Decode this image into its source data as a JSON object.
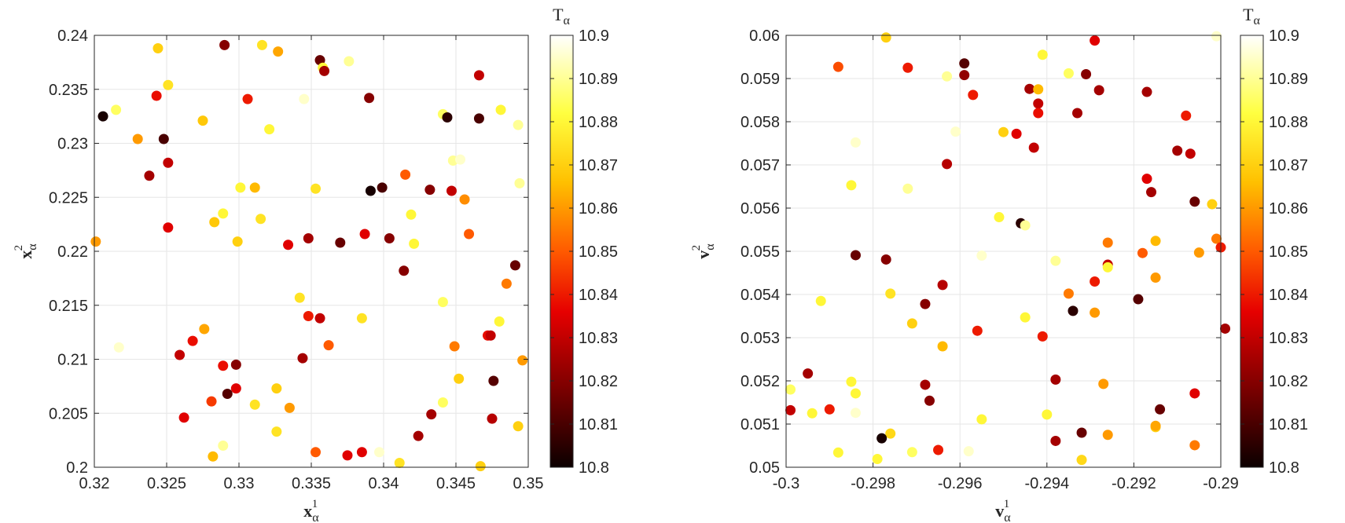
{
  "colors": {
    "colormap_hot": [
      "#0b0000",
      "#7a0000",
      "#e60000",
      "#ff5a00",
      "#ffc000",
      "#ffff40",
      "#ffffff"
    ],
    "axis": "#262626",
    "grid": "#e6e6e6",
    "background": "#ffffff"
  },
  "chart_data": [
    {
      "type": "scatter",
      "title": "",
      "xlabel_base": "x",
      "xlabel_sub": "α",
      "xlabel_sup": "1",
      "ylabel_base": "x",
      "ylabel_sub": "α",
      "ylabel_sup": "2",
      "xlim": [
        0.32,
        0.35
      ],
      "ylim": [
        0.2,
        0.24
      ],
      "xticks": [
        0.32,
        0.325,
        0.33,
        0.335,
        0.34,
        0.345,
        0.35
      ],
      "xtick_labels": [
        "0.32",
        "0.325",
        "0.33",
        "0.335",
        "0.34",
        "0.345",
        "0.35"
      ],
      "yticks": [
        0.2,
        0.205,
        0.21,
        0.215,
        0.22,
        0.225,
        0.23,
        0.235,
        0.24
      ],
      "ytick_labels": [
        "0.2",
        "0.205",
        "0.21",
        "0.215",
        "0.22",
        "0.225",
        "0.23",
        "0.235",
        "0.24"
      ],
      "grid": true,
      "colorbar": {
        "label_base": "T",
        "label_sub": "α",
        "range": [
          10.8,
          10.9
        ],
        "ticks": [
          10.8,
          10.81,
          10.82,
          10.83,
          10.84,
          10.85,
          10.86,
          10.87,
          10.88,
          10.89,
          10.9
        ],
        "tick_labels": [
          "10.8",
          "10.81",
          "10.82",
          "10.83",
          "10.84",
          "10.85",
          "10.86",
          "10.87",
          "10.88",
          "10.89",
          "10.9"
        ]
      },
      "points": [
        [
          0.3206,
          0.2325,
          10.802
        ],
        [
          0.3215,
          0.2331,
          10.885
        ],
        [
          0.323,
          0.2304,
          10.86
        ],
        [
          0.3238,
          0.227,
          10.825
        ],
        [
          0.3243,
          0.2344,
          10.838
        ],
        [
          0.3244,
          0.2388,
          10.87
        ],
        [
          0.3248,
          0.2304,
          10.81
        ],
        [
          0.3251,
          0.2354,
          10.875
        ],
        [
          0.3251,
          0.2282,
          10.83
        ],
        [
          0.3251,
          0.2222,
          10.835
        ],
        [
          0.329,
          0.2391,
          10.82
        ],
        [
          0.3275,
          0.2321,
          10.868
        ],
        [
          0.3306,
          0.2341,
          10.84
        ],
        [
          0.3316,
          0.2391,
          10.875
        ],
        [
          0.3321,
          0.2313,
          10.88
        ],
        [
          0.3327,
          0.2385,
          10.862
        ],
        [
          0.3356,
          0.2377,
          10.815
        ],
        [
          0.3358,
          0.237,
          10.88
        ],
        [
          0.3359,
          0.2367,
          10.825
        ],
        [
          0.3376,
          0.2376,
          10.89
        ],
        [
          0.339,
          0.2342,
          10.82
        ],
        [
          0.3345,
          0.2341,
          10.895
        ],
        [
          0.3466,
          0.2363,
          10.83
        ],
        [
          0.3448,
          0.2284,
          10.89
        ],
        [
          0.3441,
          0.2327,
          10.885
        ],
        [
          0.3444,
          0.2324,
          10.805
        ],
        [
          0.3466,
          0.2323,
          10.81
        ],
        [
          0.3481,
          0.2331,
          10.88
        ],
        [
          0.3493,
          0.2317,
          10.89
        ],
        [
          0.3453,
          0.2285,
          10.895
        ],
        [
          0.3494,
          0.2263,
          10.89
        ],
        [
          0.3415,
          0.2271,
          10.85
        ],
        [
          0.3391,
          0.2256,
          10.802
        ],
        [
          0.3399,
          0.2259,
          10.81
        ],
        [
          0.3432,
          0.2257,
          10.82
        ],
        [
          0.3447,
          0.2256,
          10.83
        ],
        [
          0.3456,
          0.2248,
          10.858
        ],
        [
          0.3459,
          0.2216,
          10.85
        ],
        [
          0.3353,
          0.2258,
          10.875
        ],
        [
          0.3311,
          0.2259,
          10.865
        ],
        [
          0.3301,
          0.2259,
          10.88
        ],
        [
          0.3289,
          0.2235,
          10.88
        ],
        [
          0.3283,
          0.2227,
          10.868
        ],
        [
          0.3315,
          0.223,
          10.875
        ],
        [
          0.3419,
          0.2234,
          10.88
        ],
        [
          0.3201,
          0.2209,
          10.86
        ],
        [
          0.3299,
          0.2209,
          10.87
        ],
        [
          0.3334,
          0.2206,
          10.835
        ],
        [
          0.3348,
          0.2212,
          10.825
        ],
        [
          0.337,
          0.2208,
          10.815
        ],
        [
          0.3387,
          0.2216,
          10.835
        ],
        [
          0.3404,
          0.2212,
          10.82
        ],
        [
          0.3421,
          0.2207,
          10.88
        ],
        [
          0.3414,
          0.2182,
          10.82
        ],
        [
          0.3491,
          0.2187,
          10.815
        ],
        [
          0.3485,
          0.217,
          10.855
        ],
        [
          0.3268,
          0.217,
          10.9
        ],
        [
          0.3342,
          0.2157,
          10.875
        ],
        [
          0.3348,
          0.214,
          10.84
        ],
        [
          0.3356,
          0.2138,
          10.83
        ],
        [
          0.3385,
          0.2138,
          10.875
        ],
        [
          0.3441,
          0.2153,
          10.885
        ],
        [
          0.348,
          0.2135,
          10.88
        ],
        [
          0.3472,
          0.2122,
          10.838
        ],
        [
          0.3474,
          0.2122,
          10.83
        ],
        [
          0.3449,
          0.2112,
          10.855
        ],
        [
          0.3362,
          0.2113,
          10.85
        ],
        [
          0.3344,
          0.2101,
          10.825
        ],
        [
          0.3217,
          0.2111,
          10.895
        ],
        [
          0.3259,
          0.2104,
          10.83
        ],
        [
          0.3268,
          0.2117,
          10.838
        ],
        [
          0.3276,
          0.2128,
          10.862
        ],
        [
          0.3289,
          0.2094,
          10.838
        ],
        [
          0.3298,
          0.2095,
          10.82
        ],
        [
          0.3298,
          0.2073,
          10.835
        ],
        [
          0.3292,
          0.2068,
          10.812
        ],
        [
          0.3281,
          0.2061,
          10.845
        ],
        [
          0.3262,
          0.2046,
          10.835
        ],
        [
          0.3311,
          0.2058,
          10.875
        ],
        [
          0.3326,
          0.2073,
          10.87
        ],
        [
          0.3335,
          0.2055,
          10.86
        ],
        [
          0.3326,
          0.2033,
          10.875
        ],
        [
          0.3289,
          0.202,
          10.89
        ],
        [
          0.3282,
          0.201,
          10.865
        ],
        [
          0.3353,
          0.2014,
          10.85
        ],
        [
          0.3375,
          0.2011,
          10.835
        ],
        [
          0.3385,
          0.2014,
          10.835
        ],
        [
          0.3397,
          0.2014,
          10.895
        ],
        [
          0.3411,
          0.2004,
          10.875
        ],
        [
          0.3424,
          0.2029,
          10.825
        ],
        [
          0.3433,
          0.2049,
          10.825
        ],
        [
          0.3441,
          0.206,
          10.885
        ],
        [
          0.3452,
          0.2082,
          10.87
        ],
        [
          0.3476,
          0.208,
          10.812
        ],
        [
          0.3475,
          0.2045,
          10.828
        ],
        [
          0.3493,
          0.2038,
          10.87
        ],
        [
          0.3496,
          0.2099,
          10.86
        ],
        [
          0.3467,
          0.2001,
          10.87
        ]
      ]
    },
    {
      "type": "scatter",
      "title": "",
      "xlabel_base": "v",
      "xlabel_sub": "α",
      "xlabel_sup": "1",
      "ylabel_base": "v",
      "ylabel_sub": "α",
      "ylabel_sup": "2",
      "xlim": [
        -0.3,
        -0.29
      ],
      "ylim": [
        0.05,
        0.06
      ],
      "xticks": [
        -0.3,
        -0.298,
        -0.296,
        -0.294,
        -0.292,
        -0.29
      ],
      "xtick_labels": [
        "-0.3",
        "-0.298",
        "-0.296",
        "-0.294",
        "-0.292",
        "-0.29"
      ],
      "yticks": [
        0.05,
        0.051,
        0.052,
        0.053,
        0.054,
        0.055,
        0.056,
        0.057,
        0.058,
        0.059,
        0.06
      ],
      "ytick_labels": [
        "0.05",
        "0.051",
        "0.052",
        "0.053",
        "0.054",
        "0.055",
        "0.056",
        "0.057",
        "0.058",
        "0.059",
        "0.06"
      ],
      "grid": true,
      "colorbar": {
        "label_base": "T",
        "label_sub": "α",
        "range": [
          10.8,
          10.9
        ],
        "ticks": [
          10.8,
          10.81,
          10.82,
          10.83,
          10.84,
          10.85,
          10.86,
          10.87,
          10.88,
          10.89,
          10.9
        ],
        "tick_labels": [
          "10.8",
          "10.81",
          "10.82",
          "10.83",
          "10.84",
          "10.85",
          "10.86",
          "10.87",
          "10.88",
          "10.89",
          "10.9"
        ]
      },
      "points": [
        [
          -0.2977,
          0.05995,
          10.87
        ],
        [
          -0.2988,
          0.05927,
          10.848
        ],
        [
          -0.2972,
          0.05925,
          10.84
        ],
        [
          -0.2959,
          0.05935,
          10.812
        ],
        [
          -0.2959,
          0.05908,
          10.822
        ],
        [
          -0.2957,
          0.05862,
          10.84
        ],
        [
          -0.2963,
          0.05905,
          10.89
        ],
        [
          -0.2941,
          0.05955,
          10.88
        ],
        [
          -0.2935,
          0.05912,
          10.885
        ],
        [
          -0.2931,
          0.0591,
          10.82
        ],
        [
          -0.2929,
          0.05988,
          10.835
        ],
        [
          -0.2928,
          0.05873,
          10.825
        ],
        [
          -0.2944,
          0.05876,
          10.825
        ],
        [
          -0.2942,
          0.05875,
          10.865
        ],
        [
          -0.2942,
          0.05842,
          10.83
        ],
        [
          -0.2942,
          0.0582,
          10.838
        ],
        [
          -0.2933,
          0.0582,
          10.825
        ],
        [
          -0.2917,
          0.05869,
          10.825
        ],
        [
          -0.2901,
          0.05998,
          10.895
        ],
        [
          -0.2908,
          0.05814,
          10.84
        ],
        [
          -0.291,
          0.05733,
          10.825
        ],
        [
          -0.2907,
          0.05726,
          10.83
        ],
        [
          -0.2917,
          0.05668,
          10.835
        ],
        [
          -0.2916,
          0.05637,
          10.825
        ],
        [
          -0.2906,
          0.05615,
          10.815
        ],
        [
          -0.2902,
          0.05609,
          10.87
        ],
        [
          -0.2961,
          0.05777,
          10.895
        ],
        [
          -0.295,
          0.05776,
          10.87
        ],
        [
          -0.2947,
          0.05772,
          10.835
        ],
        [
          -0.2943,
          0.0574,
          10.83
        ],
        [
          -0.2963,
          0.05702,
          10.828
        ],
        [
          -0.2984,
          0.05752,
          10.895
        ],
        [
          -0.2985,
          0.05653,
          10.88
        ],
        [
          -0.2972,
          0.05645,
          10.89
        ],
        [
          -0.2951,
          0.05579,
          10.88
        ],
        [
          -0.2946,
          0.05565,
          10.805
        ],
        [
          -0.2945,
          0.0556,
          10.89
        ],
        [
          -0.2955,
          0.0549,
          10.895
        ],
        [
          -0.2938,
          0.05478,
          10.89
        ],
        [
          -0.2926,
          0.0552,
          10.855
        ],
        [
          -0.2918,
          0.05496,
          10.85
        ],
        [
          -0.2915,
          0.05524,
          10.865
        ],
        [
          -0.2901,
          0.05529,
          10.855
        ],
        [
          -0.29,
          0.05509,
          10.84
        ],
        [
          -0.2905,
          0.05497,
          10.86
        ],
        [
          -0.2926,
          0.05469,
          10.83
        ],
        [
          -0.2926,
          0.05463,
          10.88
        ],
        [
          -0.2915,
          0.05439,
          10.86
        ],
        [
          -0.2929,
          0.0543,
          10.84
        ],
        [
          -0.2935,
          0.05402,
          10.855
        ],
        [
          -0.2919,
          0.05389,
          10.812
        ],
        [
          -0.2934,
          0.05362,
          10.805
        ],
        [
          -0.2929,
          0.05358,
          10.86
        ],
        [
          -0.291,
          0.05347,
          10.9
        ],
        [
          -0.2899,
          0.05321,
          10.825
        ],
        [
          -0.2941,
          0.05303,
          10.84
        ],
        [
          -0.2945,
          0.05347,
          10.88
        ],
        [
          -0.2956,
          0.05316,
          10.84
        ],
        [
          -0.2964,
          0.05422,
          10.828
        ],
        [
          -0.2968,
          0.05378,
          10.82
        ],
        [
          -0.2976,
          0.05402,
          10.875
        ],
        [
          -0.2977,
          0.05481,
          10.82
        ],
        [
          -0.2984,
          0.05491,
          10.815
        ],
        [
          -0.2992,
          0.05385,
          10.88
        ],
        [
          -0.2971,
          0.05333,
          10.87
        ],
        [
          -0.2964,
          0.0528,
          10.865
        ],
        [
          -0.2923,
          0.05245,
          10.9
        ],
        [
          -0.2938,
          0.05203,
          10.825
        ],
        [
          -0.2927,
          0.05193,
          10.86
        ],
        [
          -0.2901,
          0.05237,
          10.9
        ],
        [
          -0.2906,
          0.05171,
          10.835
        ],
        [
          -0.2914,
          0.05134,
          10.815
        ],
        [
          -0.2915,
          0.05093,
          10.87
        ],
        [
          -0.2915,
          0.05096,
          10.862
        ],
        [
          -0.2906,
          0.05051,
          10.855
        ],
        [
          -0.2926,
          0.05075,
          10.86
        ],
        [
          -0.2932,
          0.0508,
          10.815
        ],
        [
          -0.2938,
          0.05061,
          10.825
        ],
        [
          -0.294,
          0.05122,
          10.88
        ],
        [
          -0.2932,
          0.05017,
          10.872
        ],
        [
          -0.2955,
          0.05111,
          10.88
        ],
        [
          -0.2958,
          0.05037,
          10.895
        ],
        [
          -0.2965,
          0.0504,
          10.84
        ],
        [
          -0.2967,
          0.05154,
          10.82
        ],
        [
          -0.2968,
          0.05191,
          10.825
        ],
        [
          -0.2971,
          0.05122,
          10.9
        ],
        [
          -0.2971,
          0.05035,
          10.885
        ],
        [
          -0.2976,
          0.05078,
          10.872
        ],
        [
          -0.2978,
          0.05067,
          10.802
        ],
        [
          -0.2979,
          0.05019,
          10.88
        ],
        [
          -0.2984,
          0.05171,
          10.88
        ],
        [
          -0.2985,
          0.05198,
          10.88
        ],
        [
          -0.2984,
          0.05126,
          10.895
        ],
        [
          -0.2988,
          0.05034,
          10.88
        ],
        [
          -0.299,
          0.05134,
          10.84
        ],
        [
          -0.2994,
          0.05125,
          10.88
        ],
        [
          -0.2995,
          0.05217,
          10.825
        ],
        [
          -0.2999,
          0.0518,
          10.885
        ],
        [
          -0.2999,
          0.05132,
          10.83
        ]
      ]
    }
  ]
}
